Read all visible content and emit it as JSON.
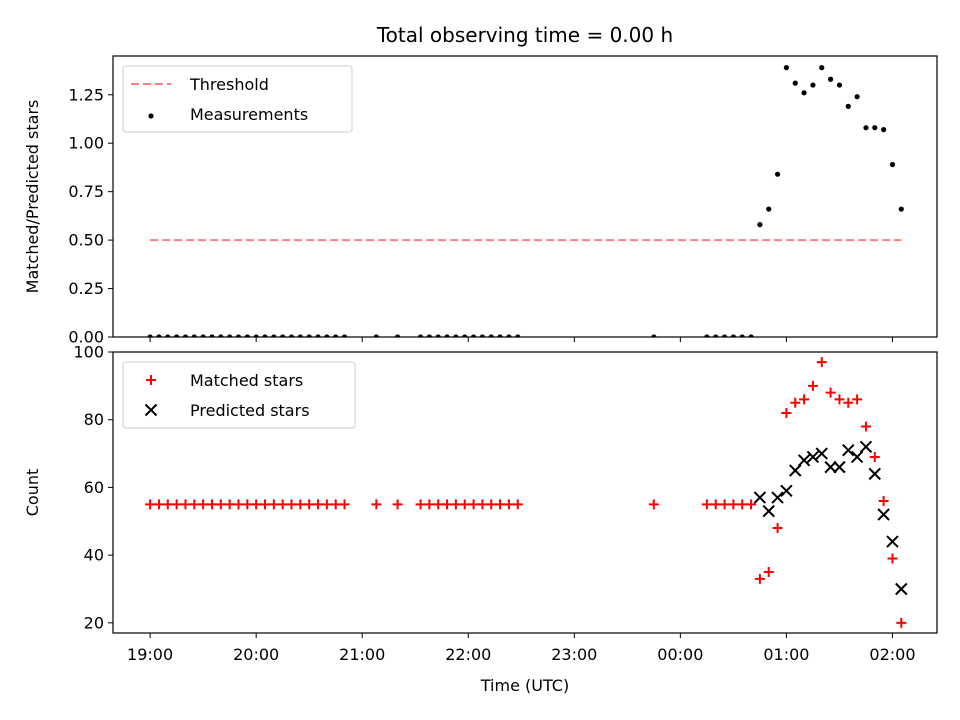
{
  "title": "Total observing time = 0.00 h",
  "chart_data": [
    {
      "type": "scatter",
      "ylabel": "Matched/Predicted stars",
      "ylim": [
        0,
        1.45
      ],
      "yticks": [
        "0.00",
        "0.25",
        "0.50",
        "0.75",
        "1.00",
        "1.25"
      ],
      "legend_placement": "upper-left",
      "legend": [
        "Threshold",
        "Measurements"
      ],
      "threshold": {
        "name": "Threshold",
        "value": 0.5,
        "x_start": "19:00",
        "x_end": "02:05",
        "color": "#ff7f7f"
      },
      "series": [
        {
          "name": "Measurements",
          "color": "#000000",
          "marker": "dot",
          "x": [
            "19:00",
            "19:05",
            "19:10",
            "19:15",
            "19:20",
            "19:25",
            "19:30",
            "19:35",
            "19:40",
            "19:45",
            "19:50",
            "19:55",
            "20:00",
            "20:05",
            "20:10",
            "20:15",
            "20:20",
            "20:25",
            "20:30",
            "20:35",
            "20:40",
            "20:45",
            "20:50",
            "21:08",
            "21:20",
            "21:33",
            "21:38",
            "21:43",
            "21:48",
            "21:53",
            "21:58",
            "22:03",
            "22:08",
            "22:13",
            "22:18",
            "22:23",
            "22:28",
            "23:45",
            "00:15",
            "00:20",
            "00:25",
            "00:30",
            "00:35",
            "00:40",
            "00:45",
            "00:50",
            "00:55",
            "01:00",
            "01:05",
            "01:10",
            "01:15",
            "01:20",
            "01:25",
            "01:30",
            "01:35",
            "01:40",
            "01:45",
            "01:50",
            "01:55",
            "02:00",
            "02:05"
          ],
          "y": [
            0,
            0,
            0,
            0,
            0,
            0,
            0,
            0,
            0,
            0,
            0,
            0,
            0,
            0,
            0,
            0,
            0,
            0,
            0,
            0,
            0,
            0,
            0,
            0,
            0,
            0,
            0,
            0,
            0,
            0,
            0,
            0,
            0,
            0,
            0,
            0,
            0,
            0,
            0,
            0,
            0,
            0,
            0,
            0,
            0.58,
            0.66,
            0.84,
            1.39,
            1.31,
            1.26,
            1.3,
            1.39,
            1.33,
            1.3,
            1.19,
            1.24,
            1.08,
            1.08,
            1.07,
            0.89,
            0.66
          ]
        }
      ]
    },
    {
      "type": "scatter",
      "xlabel": "Time (UTC)",
      "ylabel": "Count",
      "ylim": [
        17,
        100
      ],
      "yticks": [
        "20",
        "40",
        "60",
        "80",
        "100"
      ],
      "xticks": [
        "19:00",
        "20:00",
        "21:00",
        "22:00",
        "23:00",
        "00:00",
        "01:00",
        "02:00"
      ],
      "legend_placement": "upper-left",
      "legend": [
        "Matched stars",
        "Predicted stars"
      ],
      "series": [
        {
          "name": "Matched stars",
          "color": "#ff0000",
          "marker": "plus",
          "x": [
            "19:00",
            "19:05",
            "19:10",
            "19:15",
            "19:20",
            "19:25",
            "19:30",
            "19:35",
            "19:40",
            "19:45",
            "19:50",
            "19:55",
            "20:00",
            "20:05",
            "20:10",
            "20:15",
            "20:20",
            "20:25",
            "20:30",
            "20:35",
            "20:40",
            "20:45",
            "20:50",
            "21:08",
            "21:20",
            "21:33",
            "21:38",
            "21:43",
            "21:48",
            "21:53",
            "21:58",
            "22:03",
            "22:08",
            "22:13",
            "22:18",
            "22:23",
            "22:28",
            "23:45",
            "00:15",
            "00:20",
            "00:25",
            "00:30",
            "00:35",
            "00:40",
            "00:45",
            "00:50",
            "00:55",
            "01:00",
            "01:05",
            "01:10",
            "01:15",
            "01:20",
            "01:25",
            "01:30",
            "01:35",
            "01:40",
            "01:45",
            "01:50",
            "01:55",
            "02:00",
            "02:05"
          ],
          "y": [
            55,
            55,
            55,
            55,
            55,
            55,
            55,
            55,
            55,
            55,
            55,
            55,
            55,
            55,
            55,
            55,
            55,
            55,
            55,
            55,
            55,
            55,
            55,
            55,
            55,
            55,
            55,
            55,
            55,
            55,
            55,
            55,
            55,
            55,
            55,
            55,
            55,
            55,
            55,
            55,
            55,
            55,
            55,
            55,
            33,
            35,
            48,
            82,
            85,
            86,
            90,
            97,
            88,
            86,
            85,
            86,
            78,
            69,
            56,
            39,
            20
          ]
        },
        {
          "name": "Predicted stars",
          "color": "#000000",
          "marker": "x",
          "x": [
            "00:45",
            "00:50",
            "00:55",
            "01:00",
            "01:05",
            "01:10",
            "01:15",
            "01:20",
            "01:25",
            "01:30",
            "01:35",
            "01:40",
            "01:45",
            "01:50",
            "01:55",
            "02:00",
            "02:05"
          ],
          "y": [
            57,
            53,
            57,
            59,
            65,
            68,
            69,
            70,
            66,
            66,
            71,
            69,
            72,
            64,
            52,
            44,
            30
          ]
        }
      ]
    }
  ]
}
